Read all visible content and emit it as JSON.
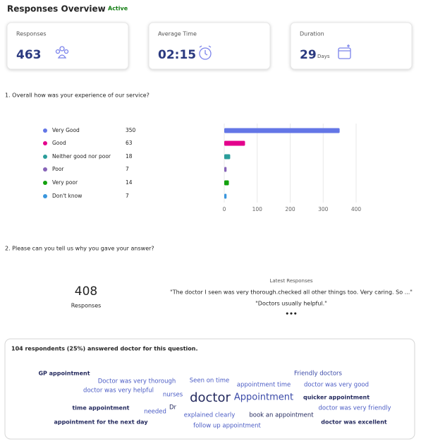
{
  "header": {
    "title": "Responses Overview",
    "status": "Active"
  },
  "cards": [
    {
      "label": "Responses",
      "value": "463"
    },
    {
      "label": "Average Time",
      "value": "02:15"
    },
    {
      "label": "Duration",
      "value": "29",
      "unit": "Days"
    }
  ],
  "question1": {
    "text": "1. Overall how was your experience of our service?"
  },
  "chart_data": {
    "type": "barh",
    "categories": [
      "Very Good",
      "Good",
      "Neither good nor poor",
      "Poor",
      "Very poor",
      "Don't know"
    ],
    "values": [
      350,
      63,
      18,
      7,
      14,
      7
    ],
    "colors": [
      "#6376e6",
      "#e3008c",
      "#2a9d9a",
      "#8764b8",
      "#13a10e",
      "#3a96dd"
    ],
    "xlim": [
      0,
      400
    ],
    "xticks": [
      0,
      100,
      200,
      300,
      400
    ],
    "grid": true
  },
  "question2": {
    "text": "2. Please can you tell us why you gave your answer?",
    "count": "408",
    "count_label": "Responses",
    "latest_title": "Latest Responses",
    "latest": [
      "\"The doctor I seen was very thorough.checked all other things too. Very caring. So ...\"",
      "\"Doctors usually helpful.\""
    ],
    "more": "•••"
  },
  "word_cloud": {
    "heading": "104 respondents (25%) answered doctor for this question.",
    "words": [
      "GP appointment",
      "Doctor was very thorough",
      "Seen on time",
      "Friendly doctors",
      "doctor was very helpful",
      "appointment time",
      "doctor was very good",
      "nurses",
      "doctor",
      "Appointment",
      "quicker appointment",
      "time appointment",
      "needed",
      "Dr",
      "explained clearly",
      "book an appointment",
      "doctor was very friendly",
      "appointment for the next day",
      "follow up appointment",
      "doctor was excellent"
    ]
  }
}
